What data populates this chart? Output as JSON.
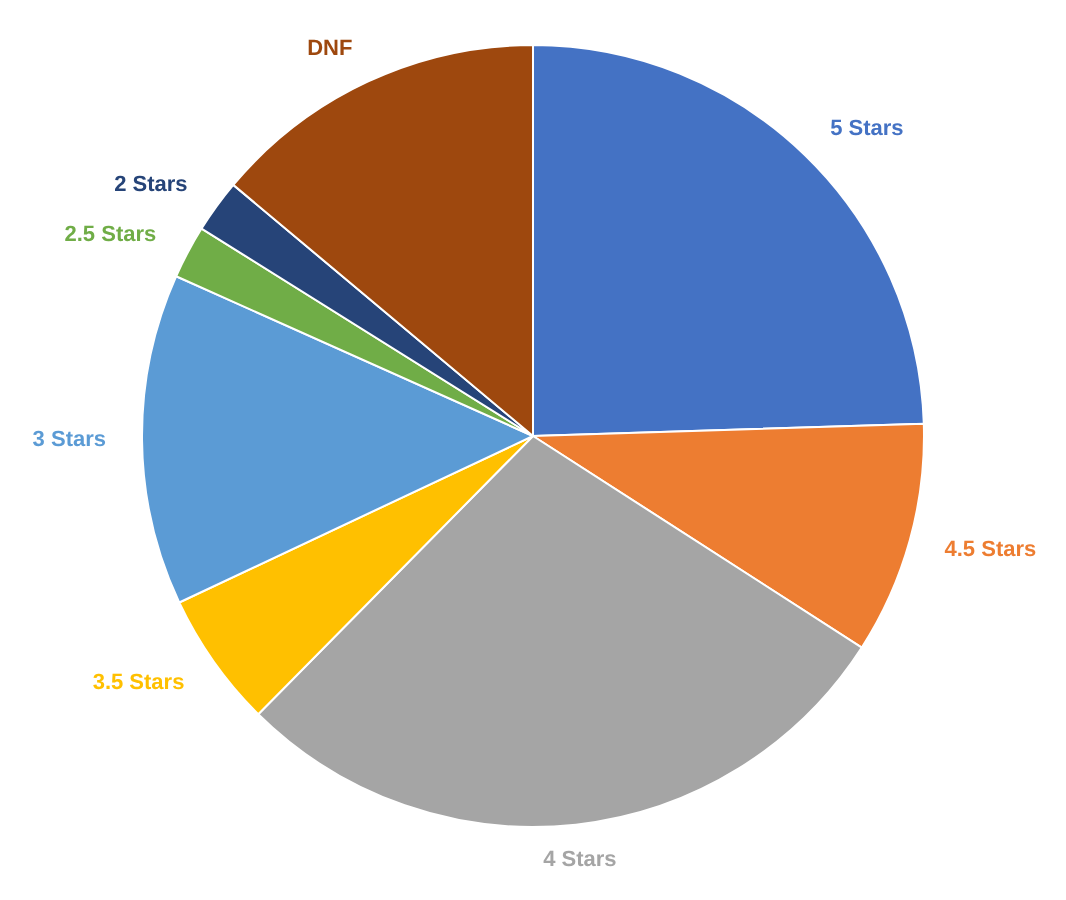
{
  "chart_data": {
    "type": "pie",
    "categories": [
      "5 Stars",
      "4.5 Stars",
      "4 Stars",
      "3.5 Stars",
      "3 Stars",
      "2.5 Stars",
      "2 Stars",
      "DNF"
    ],
    "values": [
      24.5,
      9.6,
      28.3,
      5.6,
      13.7,
      2.2,
      2.2,
      13.9
    ],
    "colors": [
      "#4472c4",
      "#ed7d31",
      "#a5a5a5",
      "#ffc000",
      "#5b9bd5",
      "#70ad47",
      "#264478",
      "#9e480e"
    ],
    "legend": false
  }
}
